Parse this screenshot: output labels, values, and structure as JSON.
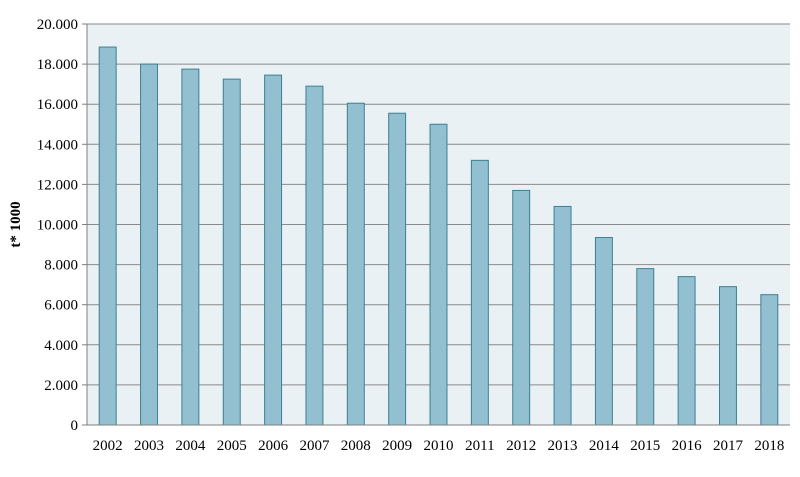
{
  "chart_data": {
    "type": "bar",
    "title": "",
    "xlabel": "",
    "ylabel": "t* 1000",
    "categories": [
      "2002",
      "2003",
      "2004",
      "2005",
      "2006",
      "2007",
      "2008",
      "2009",
      "2010",
      "2011",
      "2012",
      "2013",
      "2014",
      "2015",
      "2016",
      "2017",
      "2018"
    ],
    "values": [
      18850,
      18000,
      17750,
      17250,
      17450,
      16900,
      16050,
      15550,
      15000,
      13200,
      11700,
      10900,
      9350,
      7800,
      7400,
      6900,
      6500
    ],
    "ylim": [
      0,
      20000
    ],
    "yticks": [
      0,
      2000,
      4000,
      6000,
      8000,
      10000,
      12000,
      14000,
      16000,
      18000,
      20000
    ],
    "ytick_labels": [
      "0",
      "2.000",
      "4.000",
      "6.000",
      "8.000",
      "10.000",
      "12.000",
      "14.000",
      "16.000",
      "18.000",
      "20.000"
    ],
    "grid": true,
    "legend": "none",
    "colors": {
      "bar_fill": "#92c0d0",
      "bar_stroke": "#3d7f93",
      "plot_background": "#eaf1f4",
      "grid": "#8a8a8a",
      "axis": "#7f7f7f"
    }
  }
}
